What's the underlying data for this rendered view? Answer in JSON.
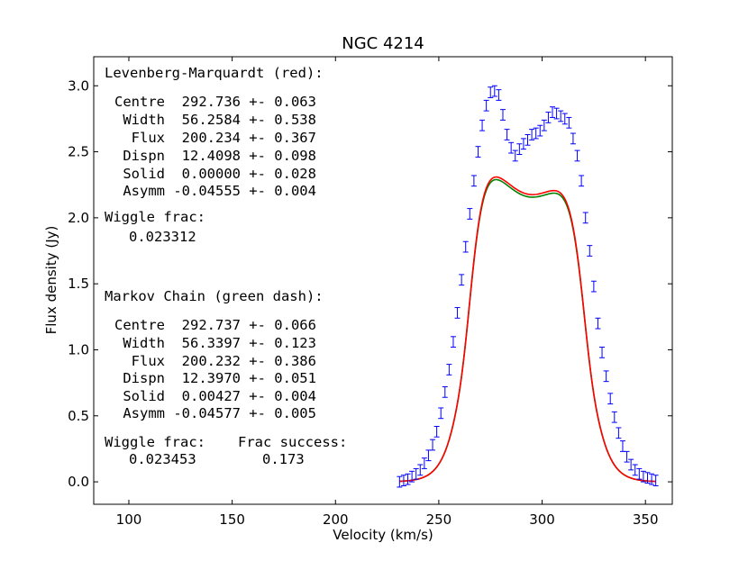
{
  "chart_data": {
    "type": "scatter",
    "title": "NGC 4214",
    "xlabel": "Velocity (km/s)",
    "ylabel": "Flux density (Jy)",
    "xlim": [
      83,
      363
    ],
    "ylim": [
      -0.17,
      3.22
    ],
    "xticks": [
      "100",
      "150",
      "200",
      "250",
      "300",
      "350"
    ],
    "xtick_values": [
      100,
      150,
      200,
      250,
      300,
      350
    ],
    "yticks": [
      "0.0",
      "0.5",
      "1.0",
      "1.5",
      "2.0",
      "2.5",
      "3.0"
    ],
    "ytick_values": [
      0.0,
      0.5,
      1.0,
      1.5,
      2.0,
      2.5,
      3.0
    ],
    "grid": false,
    "series": [
      {
        "name": "Data",
        "color": "#0000ff",
        "x": [
          231,
          233,
          235,
          237,
          239,
          241,
          243,
          245,
          247,
          249,
          251,
          253,
          255,
          257,
          259,
          261,
          263,
          265,
          267,
          269,
          271,
          273,
          275,
          277,
          279,
          281,
          283,
          285,
          287,
          289,
          291,
          293,
          295,
          297,
          299,
          301,
          303,
          305,
          307,
          309,
          311,
          313,
          315,
          317,
          319,
          321,
          323,
          325,
          327,
          329,
          331,
          333,
          335,
          337,
          339,
          341,
          343,
          345,
          347,
          349,
          351,
          353,
          355
        ],
        "y": [
          0.0,
          0.01,
          0.02,
          0.04,
          0.06,
          0.09,
          0.14,
          0.2,
          0.28,
          0.38,
          0.52,
          0.68,
          0.85,
          1.06,
          1.28,
          1.53,
          1.78,
          2.03,
          2.28,
          2.5,
          2.7,
          2.85,
          2.95,
          2.96,
          2.93,
          2.78,
          2.63,
          2.53,
          2.47,
          2.52,
          2.56,
          2.59,
          2.63,
          2.64,
          2.66,
          2.7,
          2.76,
          2.8,
          2.79,
          2.77,
          2.75,
          2.72,
          2.6,
          2.47,
          2.28,
          2.0,
          1.75,
          1.48,
          1.2,
          0.98,
          0.8,
          0.63,
          0.49,
          0.37,
          0.27,
          0.19,
          0.13,
          0.09,
          0.06,
          0.04,
          0.03,
          0.02,
          0.01
        ],
        "err": 0.04
      },
      {
        "name": "Levenberg-Marquardt (red)",
        "color": "#ff0000",
        "model": {
          "centre": 292.736,
          "width": 56.2584,
          "flux": 200.234,
          "dispn": 12.4098,
          "solid": 0.0,
          "asymm": -0.04555
        }
      },
      {
        "name": "Markov Chain (green dash)",
        "color": "#008000",
        "model": {
          "centre": 292.737,
          "width": 56.3397,
          "flux": 200.232,
          "dispn": 12.397,
          "solid": 0.00427,
          "asymm": -0.04577
        }
      }
    ],
    "annotations": {
      "lm_title": "Levenberg-Marquardt (red):",
      "lm_lines": [
        "Centre  292.736 +- 0.063",
        " Width  56.2584 +- 0.538",
        "  Flux  200.234 +- 0.367",
        " Dispn  12.4098 +- 0.098",
        " Solid  0.00000 +- 0.028",
        " Asymm -0.04555 +- 0.004"
      ],
      "lm_wiggle_label": "Wiggle frac:",
      "lm_wiggle_value": "0.023312",
      "mc_title": "Markov Chain (green dash):",
      "mc_lines": [
        "Centre  292.737 +- 0.066",
        " Width  56.3397 +- 0.123",
        "  Flux  200.232 +- 0.386",
        " Dispn  12.3970 +- 0.051",
        " Solid  0.00427 +- 0.004",
        " Asymm -0.04577 +- 0.005"
      ],
      "mc_wiggle_label": "Wiggle frac:",
      "mc_wiggle_value": "0.023453",
      "mc_success_label": "Frac success:",
      "mc_success_value": "0.173"
    }
  }
}
